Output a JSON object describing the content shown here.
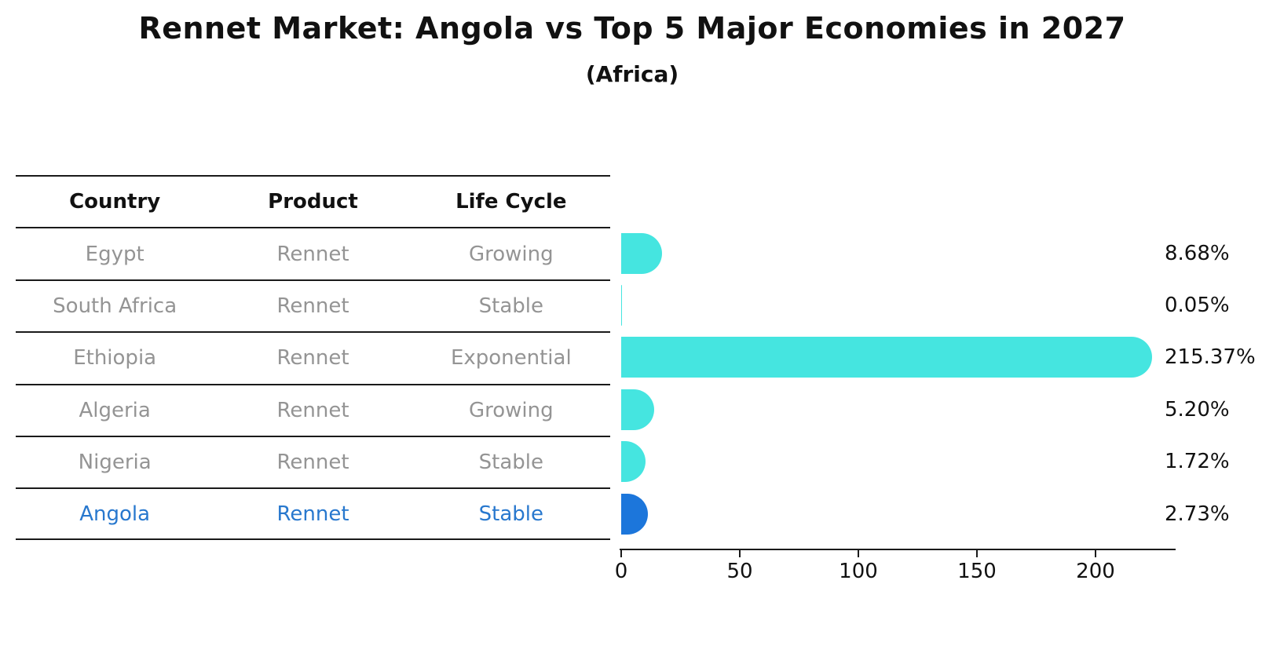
{
  "title": "Rennet Market: Angola vs Top 5 Major Economies in 2027",
  "subtitle": "(Africa)",
  "table": {
    "headers": [
      "Country",
      "Product",
      "Life Cycle"
    ],
    "rows": [
      {
        "country": "Egypt",
        "product": "Rennet",
        "life_cycle": "Growing",
        "highlight": false
      },
      {
        "country": "South Africa",
        "product": "Rennet",
        "life_cycle": "Stable",
        "highlight": false
      },
      {
        "country": "Ethiopia",
        "product": "Rennet",
        "life_cycle": "Exponential",
        "highlight": false
      },
      {
        "country": "Algeria",
        "product": "Rennet",
        "life_cycle": "Growing",
        "highlight": false
      },
      {
        "country": "Nigeria",
        "product": "Rennet",
        "life_cycle": "Stable",
        "highlight": false
      },
      {
        "country": "Angola",
        "product": "Rennet",
        "life_cycle": "Stable",
        "highlight": true
      }
    ]
  },
  "chart_data": {
    "type": "bar",
    "orientation": "horizontal",
    "title": "Rennet Market: Angola vs Top 5 Major Economies in 2027",
    "subtitle": "(Africa)",
    "categories": [
      "Egypt",
      "South Africa",
      "Ethiopia",
      "Algeria",
      "Nigeria",
      "Angola"
    ],
    "values": [
      8.68,
      0.05,
      215.37,
      5.2,
      1.72,
      2.73
    ],
    "value_labels": [
      "8.68%",
      "0.05%",
      "215.37%",
      "5.20%",
      "1.72%",
      "2.73%"
    ],
    "x_ticks": [
      0,
      50,
      100,
      150,
      200
    ],
    "xlim": [
      0,
      232
    ],
    "xlabel": "",
    "ylabel": "",
    "grid": false,
    "legend": false,
    "bar_color": "#45e5e0",
    "highlight_bar_color": "#1c76db",
    "highlight_index": 5
  },
  "colors": {
    "text_gray": "#949494",
    "highlight_text": "#2878ce",
    "line": "#1a1a1a"
  }
}
